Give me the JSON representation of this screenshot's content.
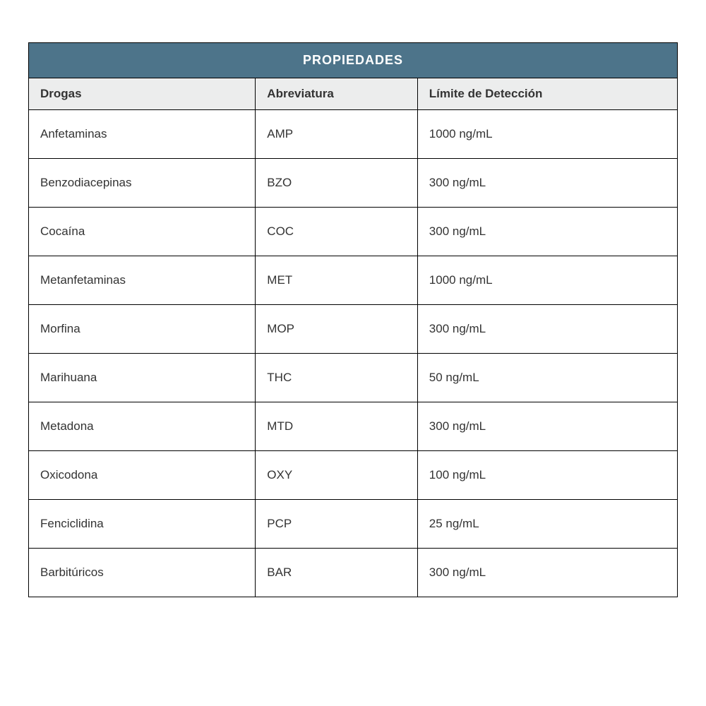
{
  "table": {
    "title": "PROPIEDADES",
    "title_bg_color": "#4d748a",
    "title_text_color": "#ffffff",
    "header_bg_color": "#eceded",
    "border_color": "#000000",
    "text_color": "#333333",
    "columns": [
      {
        "label": "Drogas",
        "width": "35%"
      },
      {
        "label": "Abreviatura",
        "width": "25%"
      },
      {
        "label": "Límite de Detección",
        "width": "40%"
      }
    ],
    "rows": [
      {
        "drug": "Anfetaminas",
        "abbr": "AMP",
        "limit": "1000 ng/mL"
      },
      {
        "drug": "Benzodiacepinas",
        "abbr": "BZO",
        "limit": "300 ng/mL"
      },
      {
        "drug": "Cocaína",
        "abbr": "COC",
        "limit": "300 ng/mL"
      },
      {
        "drug": "Metanfetaminas",
        "abbr": "MET",
        "limit": "1000 ng/mL"
      },
      {
        "drug": "Morfina",
        "abbr": "MOP",
        "limit": "300 ng/mL"
      },
      {
        "drug": "Marihuana",
        "abbr": "THC",
        "limit": "50 ng/mL"
      },
      {
        "drug": "Metadona",
        "abbr": "MTD",
        "limit": "300 ng/mL"
      },
      {
        "drug": "Oxicodona",
        "abbr": "OXY",
        "limit": "100 ng/mL"
      },
      {
        "drug": "Fenciclidina",
        "abbr": "PCP",
        "limit": "25 ng/mL"
      },
      {
        "drug": "Barbitúricos",
        "abbr": "BAR",
        "limit": "300 ng/mL"
      }
    ]
  }
}
